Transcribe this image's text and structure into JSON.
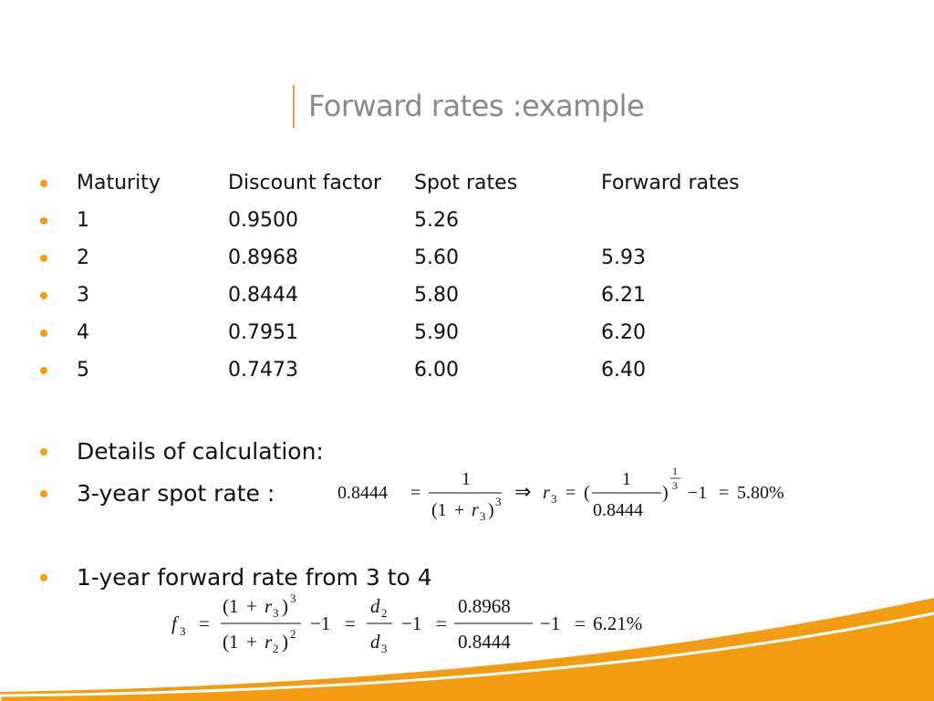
{
  "slide": {
    "title": "Forward rates :example"
  },
  "table": {
    "headers": [
      "Maturity",
      "Discount factor",
      "Spot rates",
      "Forward rates"
    ],
    "rows": [
      [
        "1",
        "0.9500",
        "5.26",
        ""
      ],
      [
        "2",
        "0.8968",
        "5.60",
        "5.93"
      ],
      [
        "3",
        "0.8444",
        "5.80",
        "6.21"
      ],
      [
        "4",
        "0.7951",
        "5.90",
        "6.20"
      ],
      [
        "5",
        "0.7473",
        "6.00",
        "6.40"
      ]
    ]
  },
  "bullets": {
    "details": "Details of calculation:",
    "spot": "3-year spot rate :",
    "forward": "1-year forward rate from 3 to 4"
  },
  "eq1": {
    "lhs": "0.8444",
    "eq": "=",
    "one": "1",
    "den_open": "(1",
    "plus": "+",
    "r": "r",
    "sub3": "3",
    "close": ")",
    "pow3": "3",
    "implies": "⇒",
    "paren_open": "(",
    "den2": "0.8444",
    "paren_close": ")",
    "exp_num": "1",
    "exp_den": "3",
    "minus_one": "−1",
    "result": "5.80%"
  },
  "eq2": {
    "f": "f",
    "sub3": "3",
    "eq": "=",
    "num_open": "(1",
    "plus": "+",
    "r": "r",
    "close": ")",
    "pow3": "3",
    "sub2": "2",
    "pow2": "2",
    "minus_one": "−1",
    "d": "d",
    "num": "0.8968",
    "den": "0.8444",
    "result": "6.21%"
  }
}
